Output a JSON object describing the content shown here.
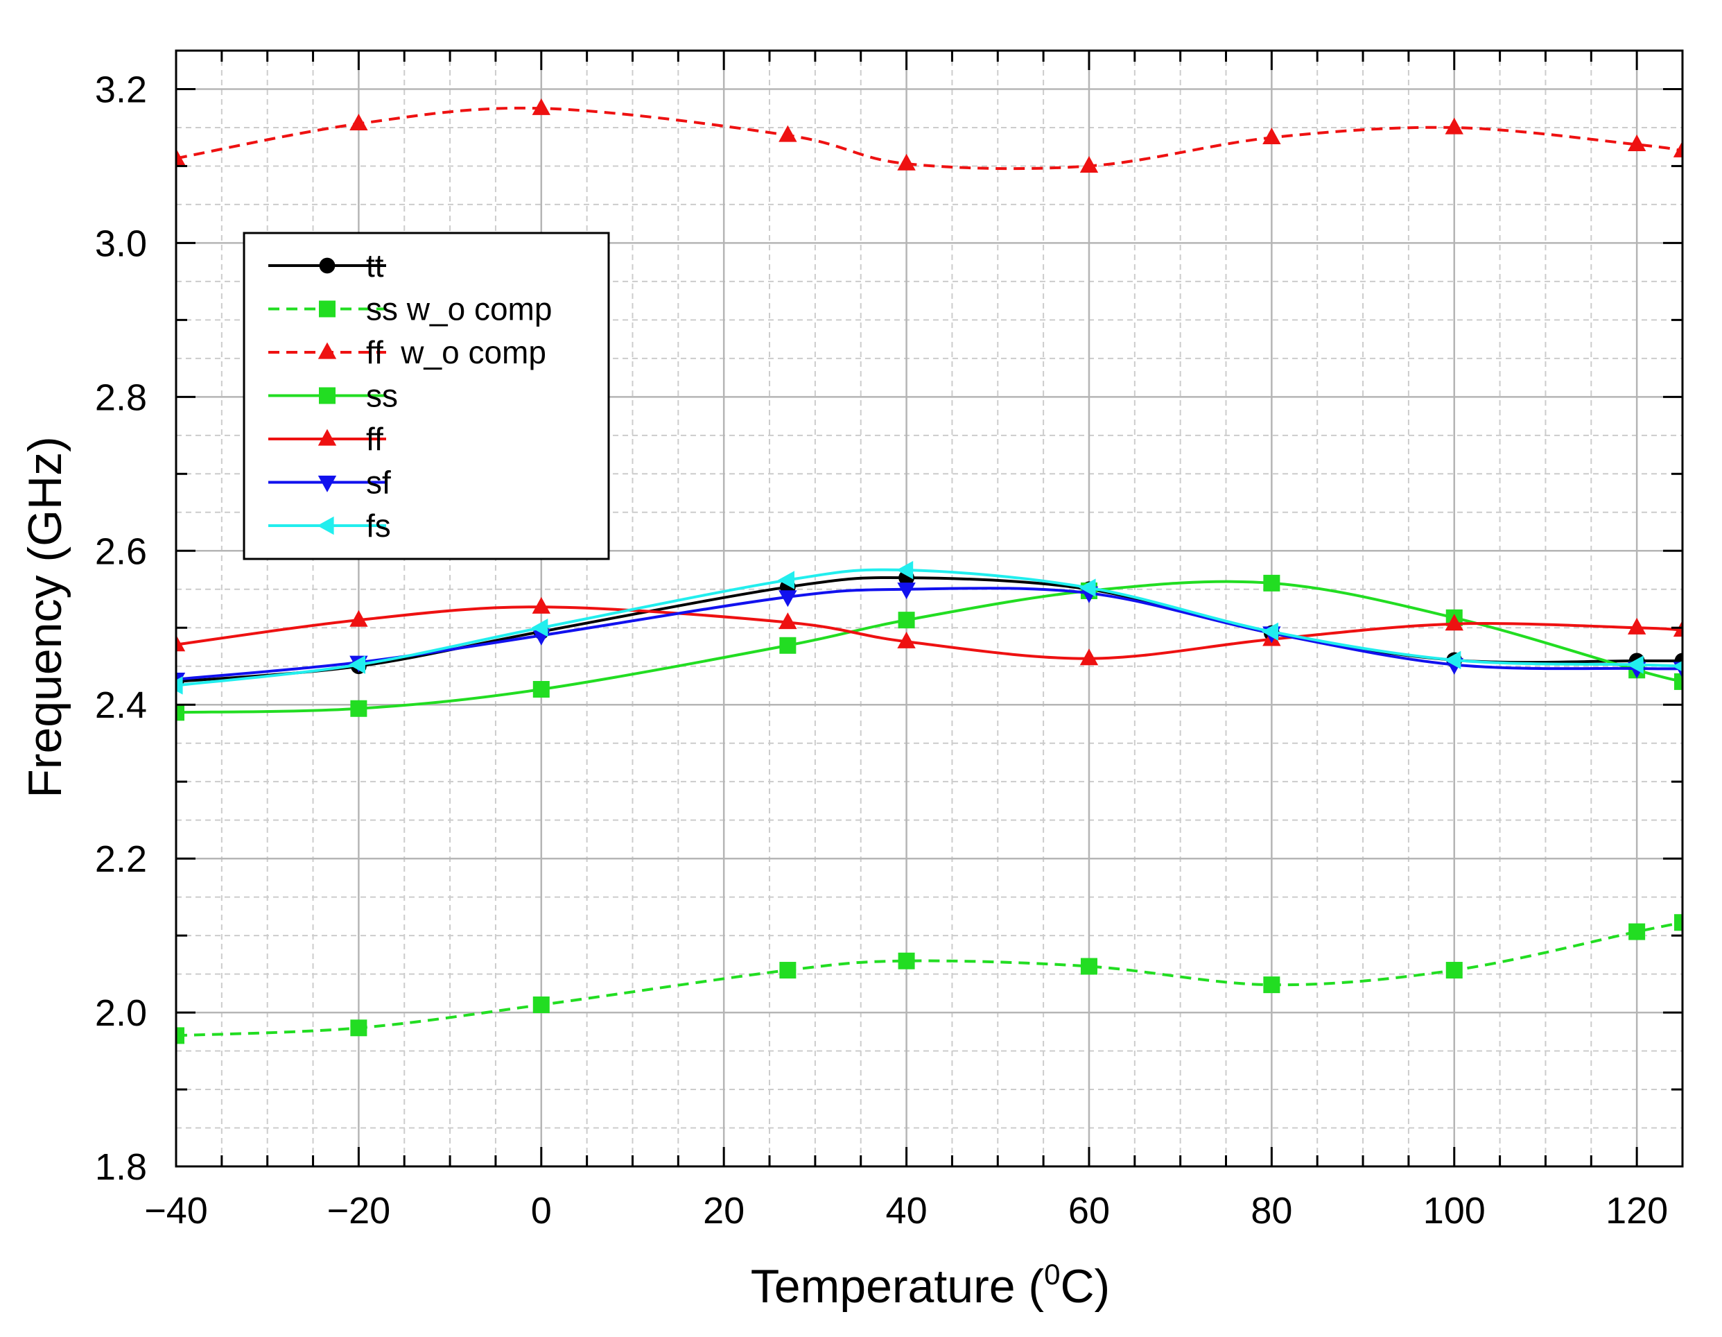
{
  "chart_data": {
    "type": "line",
    "title": "",
    "xlabel": "Temperature (",
    "xlabel_sup": "0",
    "xlabel_unit": "C)",
    "ylabel": "Frequency (GHz)",
    "xlim": [
      -40,
      125
    ],
    "ylim": [
      1.8,
      3.25
    ],
    "xticks": [
      -40,
      -20,
      0,
      20,
      40,
      60,
      80,
      100,
      120
    ],
    "xtick_labels": [
      "−40",
      "−20",
      "0",
      "20",
      "40",
      "60",
      "80",
      "100",
      "120"
    ],
    "yticks": [
      1.8,
      2.0,
      2.2,
      2.4,
      2.6,
      2.8,
      3.0,
      3.2
    ],
    "ytick_labels": [
      "1.8",
      "2.0",
      "2.2",
      "2.4",
      "2.6",
      "2.8",
      "3.0",
      "3.2"
    ],
    "grid": true,
    "legend_position": "upper-left",
    "series": [
      {
        "name": "tt",
        "color": "#000000",
        "dash": "solid",
        "marker": "circle",
        "x": [
          -40,
          -20,
          0,
          27,
          40,
          60,
          80,
          100,
          120,
          125
        ],
        "y": [
          2.43,
          2.45,
          2.495,
          2.553,
          2.565,
          2.55,
          2.493,
          2.458,
          2.457,
          2.457
        ]
      },
      {
        "name": "ss w_o comp",
        "color": "#22dd22",
        "dash": "dashed",
        "marker": "square",
        "x": [
          -40,
          -20,
          0,
          27,
          40,
          60,
          80,
          100,
          120,
          125
        ],
        "y": [
          1.97,
          1.98,
          2.01,
          2.055,
          2.067,
          2.06,
          2.036,
          2.055,
          2.105,
          2.117
        ]
      },
      {
        "name": "ff  w_o comp",
        "color": "#ee1111",
        "dash": "dashed",
        "marker": "triangle-up",
        "x": [
          -40,
          -20,
          0,
          27,
          40,
          60,
          80,
          100,
          120,
          125
        ],
        "y": [
          3.11,
          3.155,
          3.175,
          3.14,
          3.103,
          3.1,
          3.137,
          3.15,
          3.128,
          3.12
        ]
      },
      {
        "name": "ss",
        "color": "#22dd22",
        "dash": "solid",
        "marker": "square",
        "x": [
          -40,
          -20,
          0,
          27,
          40,
          60,
          80,
          100,
          120,
          125
        ],
        "y": [
          2.39,
          2.395,
          2.42,
          2.477,
          2.51,
          2.548,
          2.558,
          2.513,
          2.445,
          2.43
        ]
      },
      {
        "name": "ff",
        "color": "#ee1111",
        "dash": "solid",
        "marker": "triangle-up",
        "x": [
          -40,
          -20,
          0,
          27,
          40,
          60,
          80,
          100,
          120,
          125
        ],
        "y": [
          2.478,
          2.51,
          2.527,
          2.507,
          2.482,
          2.46,
          2.485,
          2.505,
          2.5,
          2.497
        ]
      },
      {
        "name": "sf",
        "color": "#1111ee",
        "dash": "solid",
        "marker": "triangle-down",
        "x": [
          -40,
          -20,
          0,
          27,
          40,
          60,
          80,
          100,
          120,
          125
        ],
        "y": [
          2.433,
          2.455,
          2.49,
          2.54,
          2.55,
          2.545,
          2.493,
          2.452,
          2.447,
          2.447
        ]
      },
      {
        "name": "fs",
        "color": "#22eeee",
        "dash": "solid",
        "marker": "triangle-left",
        "x": [
          -40,
          -20,
          0,
          27,
          40,
          60,
          80,
          100,
          120,
          125
        ],
        "y": [
          2.425,
          2.452,
          2.5,
          2.562,
          2.575,
          2.552,
          2.495,
          2.458,
          2.452,
          2.45
        ]
      }
    ]
  }
}
